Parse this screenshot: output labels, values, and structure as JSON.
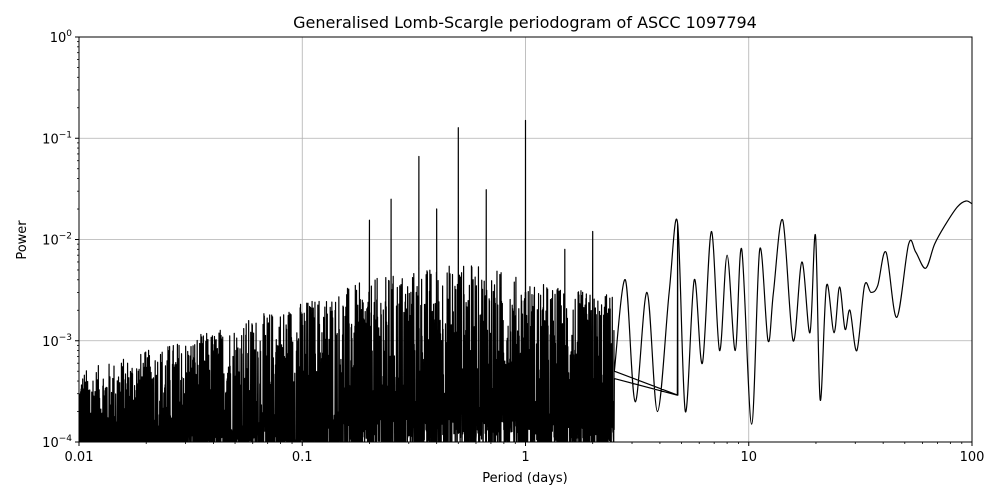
{
  "chart_data": {
    "type": "line",
    "title": "Generalised Lomb-Scargle periodogram of ASCC 1097794",
    "xlabel": "Period (days)",
    "ylabel": "Power",
    "xscale": "log",
    "yscale": "log",
    "xlim": [
      0.01,
      100
    ],
    "ylim": [
      0.0001,
      1
    ],
    "grid": true,
    "x_ticks": [
      {
        "value": 0.01,
        "label": "0.01"
      },
      {
        "value": 0.1,
        "label": "0.1"
      },
      {
        "value": 1,
        "label": "1"
      },
      {
        "value": 10,
        "label": "10"
      },
      {
        "value": 100,
        "label": "100"
      }
    ],
    "y_ticks": [
      {
        "value": 0.0001,
        "base": "10",
        "exp": "−4"
      },
      {
        "value": 0.001,
        "base": "10",
        "exp": "−3"
      },
      {
        "value": 0.01,
        "base": "10",
        "exp": "−2"
      },
      {
        "value": 0.1,
        "base": "10",
        "exp": "−1"
      },
      {
        "value": 1,
        "base": "10",
        "exp": "0"
      }
    ],
    "series": [
      {
        "color": "#000000",
        "dense_envelope": [
          {
            "x": 0.01,
            "high": 0.0005,
            "low": 0.0001
          },
          {
            "x": 0.02,
            "high": 0.0008,
            "low": 0.0001
          },
          {
            "x": 0.05,
            "high": 0.0015,
            "low": 0.0001
          },
          {
            "x": 0.1,
            "high": 0.0025,
            "low": 0.0001
          },
          {
            "x": 0.2,
            "high": 0.004,
            "low": 0.0001
          },
          {
            "x": 0.3,
            "high": 0.005,
            "low": 0.0001
          },
          {
            "x": 0.5,
            "high": 0.006,
            "low": 0.0001
          },
          {
            "x": 0.8,
            "high": 0.005,
            "low": 0.0001
          },
          {
            "x": 1.0,
            "high": 0.004,
            "low": 0.0001
          },
          {
            "x": 2.0,
            "high": 0.003,
            "low": 0.0001
          }
        ],
        "peaks": [
          {
            "x": 0.2,
            "y": 0.0155
          },
          {
            "x": 0.25,
            "y": 0.025
          },
          {
            "x": 0.333,
            "y": 0.066
          },
          {
            "x": 0.4,
            "y": 0.02
          },
          {
            "x": 0.5,
            "y": 0.127
          },
          {
            "x": 0.667,
            "y": 0.031
          },
          {
            "x": 1.0,
            "y": 0.15
          },
          {
            "x": 1.5,
            "y": 0.008
          },
          {
            "x": 2.0,
            "y": 0.012
          },
          {
            "x": 4.8,
            "y": 0.0145
          }
        ],
        "long_period": [
          [
            2.5,
            0.0005
          ],
          [
            2.8,
            0.004
          ],
          [
            3.1,
            0.00025
          ],
          [
            3.5,
            0.003
          ],
          [
            3.9,
            0.0002
          ],
          [
            4.4,
            0.003
          ],
          [
            4.8,
            0.0145
          ],
          [
            5.2,
            0.0002
          ],
          [
            5.7,
            0.004
          ],
          [
            6.2,
            0.0006
          ],
          [
            6.8,
            0.012
          ],
          [
            7.4,
            0.0008
          ],
          [
            8.0,
            0.007
          ],
          [
            8.7,
            0.0008
          ],
          [
            9.3,
            0.008
          ],
          [
            10.3,
            0.00015
          ],
          [
            11.2,
            0.008
          ],
          [
            12.2,
            0.001
          ],
          [
            12.9,
            0.003
          ],
          [
            14.2,
            0.0155
          ],
          [
            15.8,
            0.001
          ],
          [
            17.3,
            0.006
          ],
          [
            18.8,
            0.0012
          ],
          [
            19.9,
            0.011
          ],
          [
            20.9,
            0.00026
          ],
          [
            22.3,
            0.0035
          ],
          [
            24.1,
            0.0012
          ],
          [
            25.5,
            0.0034
          ],
          [
            27.0,
            0.0013
          ],
          [
            28.4,
            0.002
          ],
          [
            30.5,
            0.0008
          ],
          [
            33.0,
            0.0035
          ],
          [
            35.3,
            0.003
          ],
          [
            37.8,
            0.0035
          ],
          [
            41.2,
            0.0075
          ],
          [
            46.0,
            0.0017
          ],
          [
            52.0,
            0.009
          ],
          [
            56.0,
            0.0075
          ],
          [
            62.0,
            0.0052
          ],
          [
            68.0,
            0.009
          ],
          [
            76.0,
            0.014
          ],
          [
            86.0,
            0.021
          ],
          [
            94.0,
            0.024
          ],
          [
            100.0,
            0.0225
          ]
        ]
      }
    ]
  }
}
